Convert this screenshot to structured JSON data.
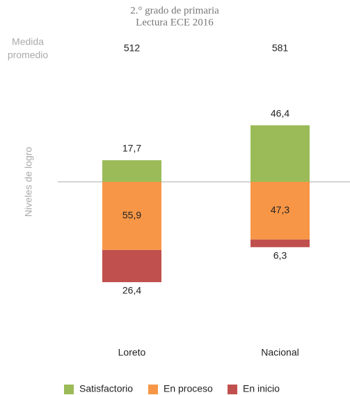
{
  "chart_data": {
    "type": "diverging_bar",
    "title": "2.° grado de primaria",
    "subtitle": "Lectura ECE 2016",
    "average_label": [
      "Medida",
      "promedio"
    ],
    "average_values": [
      512,
      581
    ],
    "y_axis_label": "Niveles de logro",
    "categories": [
      "Loreto",
      "Nacional"
    ],
    "series": [
      {
        "name": "Satisfactorio",
        "color": "#9bbb59",
        "values": [
          17.7,
          46.4
        ],
        "value_labels": [
          "17,7",
          "46,4"
        ],
        "direction": "up"
      },
      {
        "name": "En proceso",
        "color": "#f79646",
        "values": [
          55.9,
          47.3
        ],
        "value_labels": [
          "55,9",
          "47,3"
        ],
        "direction": "down"
      },
      {
        "name": "En inicio",
        "color": "#c0504d",
        "values": [
          26.4,
          6.3
        ],
        "value_labels": [
          "26,4",
          "6,3"
        ],
        "direction": "down"
      }
    ],
    "legend": "bottom"
  }
}
